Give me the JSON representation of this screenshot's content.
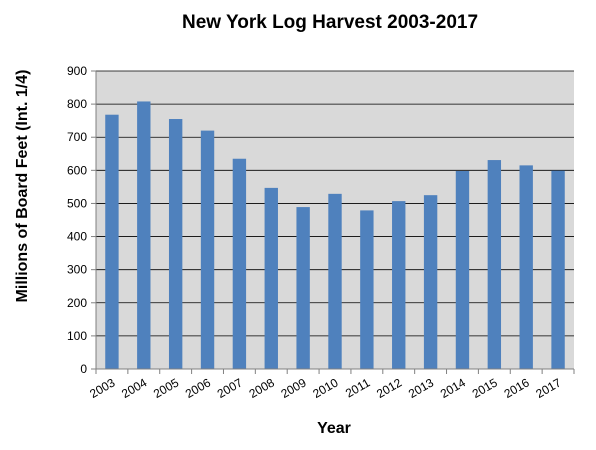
{
  "chart_data": {
    "type": "bar",
    "title": "New York Log Harvest 2003-2017",
    "xlabel": "Year",
    "ylabel": "Millions of Board Feet (Int. 1/4)",
    "categories": [
      "2003",
      "2004",
      "2005",
      "2006",
      "2007",
      "2008",
      "2009",
      "2010",
      "2011",
      "2012",
      "2013",
      "2014",
      "2015",
      "2016",
      "2017"
    ],
    "values": [
      768,
      808,
      755,
      720,
      635,
      547,
      489,
      529,
      479,
      507,
      525,
      598,
      631,
      615,
      599
    ],
    "ylim": [
      0,
      900
    ],
    "yticks": [
      "0",
      "100",
      "200",
      "300",
      "400",
      "500",
      "600",
      "700",
      "800",
      "900"
    ],
    "grid": true,
    "legend": "none",
    "colors": {
      "bar": "#4f81bd",
      "plot_background": "#d9d9d9",
      "gridline": "#000000",
      "axis": "#808080"
    }
  }
}
